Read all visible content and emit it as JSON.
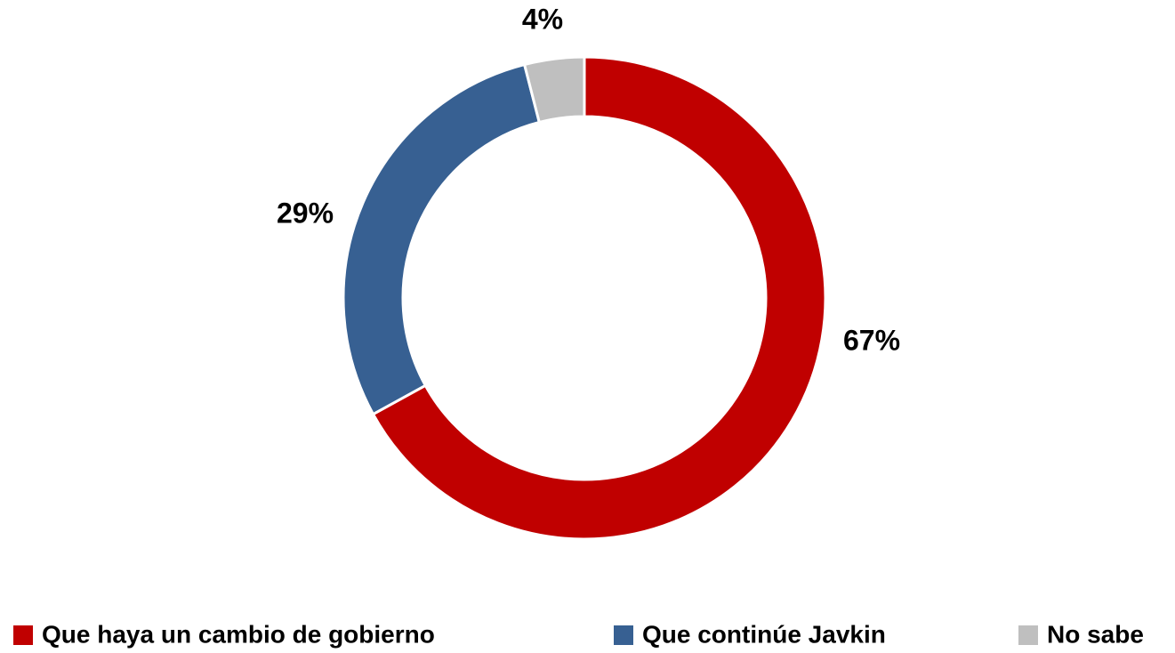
{
  "chart_data": {
    "type": "donut",
    "categories": [
      "Que haya un cambio de gobierno",
      "Que continúe Javkin",
      "No sabe"
    ],
    "values": [
      67,
      29,
      4
    ],
    "value_labels": [
      "67%",
      "29%",
      "4%"
    ],
    "colors": [
      "#c00000",
      "#376092",
      "#bfbfbf"
    ],
    "legend": "bottom"
  }
}
